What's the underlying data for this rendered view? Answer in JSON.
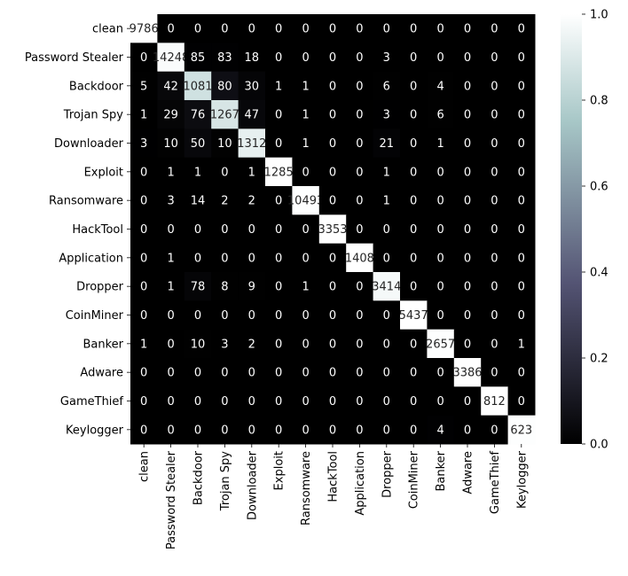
{
  "chart_data": {
    "type": "heatmap",
    "title": "",
    "xlabel": "",
    "ylabel": "",
    "row_labels": [
      "clean",
      "Password Stealer",
      "Backdoor",
      "Trojan Spy",
      "Downloader",
      "Exploit",
      "Ransomware",
      "HackTool",
      "Application",
      "Dropper",
      "CoinMiner",
      "Banker",
      "Adware",
      "GameThief",
      "Keylogger"
    ],
    "col_labels": [
      "clean",
      "Password Stealer",
      "Backdoor",
      "Trojan Spy",
      "Downloader",
      "Exploit",
      "Ransomware",
      "HackTool",
      "Application",
      "Dropper",
      "CoinMiner",
      "Banker",
      "Adware",
      "GameThief",
      "Keylogger"
    ],
    "values": [
      [
        9786,
        0,
        0,
        0,
        0,
        0,
        0,
        0,
        0,
        0,
        0,
        0,
        0,
        0,
        0
      ],
      [
        0,
        14248,
        85,
        83,
        18,
        0,
        0,
        0,
        0,
        3,
        0,
        0,
        0,
        0,
        0
      ],
      [
        5,
        42,
        1081,
        80,
        30,
        1,
        1,
        0,
        0,
        6,
        0,
        4,
        0,
        0,
        0
      ],
      [
        1,
        29,
        76,
        1267,
        47,
        0,
        1,
        0,
        0,
        3,
        0,
        6,
        0,
        0,
        0
      ],
      [
        3,
        10,
        50,
        10,
        1312,
        0,
        1,
        0,
        0,
        21,
        0,
        1,
        0,
        0,
        0
      ],
      [
        0,
        1,
        1,
        0,
        1,
        1285,
        0,
        0,
        0,
        1,
        0,
        0,
        0,
        0,
        0
      ],
      [
        0,
        3,
        14,
        2,
        2,
        0,
        10493,
        0,
        0,
        1,
        0,
        0,
        0,
        0,
        0
      ],
      [
        0,
        0,
        0,
        0,
        0,
        0,
        0,
        3353,
        0,
        0,
        0,
        0,
        0,
        0,
        0
      ],
      [
        0,
        1,
        0,
        0,
        0,
        0,
        0,
        0,
        1408,
        0,
        0,
        0,
        0,
        0,
        0
      ],
      [
        0,
        1,
        78,
        8,
        9,
        0,
        1,
        0,
        0,
        3414,
        0,
        0,
        0,
        0,
        0
      ],
      [
        0,
        0,
        0,
        0,
        0,
        0,
        0,
        0,
        0,
        0,
        5437,
        0,
        0,
        0,
        0
      ],
      [
        1,
        0,
        10,
        3,
        2,
        0,
        0,
        0,
        0,
        0,
        0,
        2657,
        0,
        0,
        1
      ],
      [
        0,
        0,
        0,
        0,
        0,
        0,
        0,
        0,
        0,
        0,
        0,
        0,
        3386,
        0,
        0
      ],
      [
        0,
        0,
        0,
        0,
        0,
        0,
        0,
        0,
        0,
        0,
        0,
        0,
        0,
        812,
        0
      ],
      [
        0,
        0,
        0,
        0,
        0,
        0,
        0,
        0,
        0,
        0,
        0,
        4,
        0,
        0,
        623
      ]
    ],
    "colorbar": {
      "ticks": [
        "0.0",
        "0.2",
        "0.4",
        "0.6",
        "0.8",
        "1.0"
      ],
      "range": [
        0,
        1
      ],
      "colormap": "bone",
      "colors": [
        "#000000",
        "#545474",
        "#a7c7c7",
        "#ffffff"
      ]
    },
    "grid": false,
    "legend": "colorbar-right"
  }
}
